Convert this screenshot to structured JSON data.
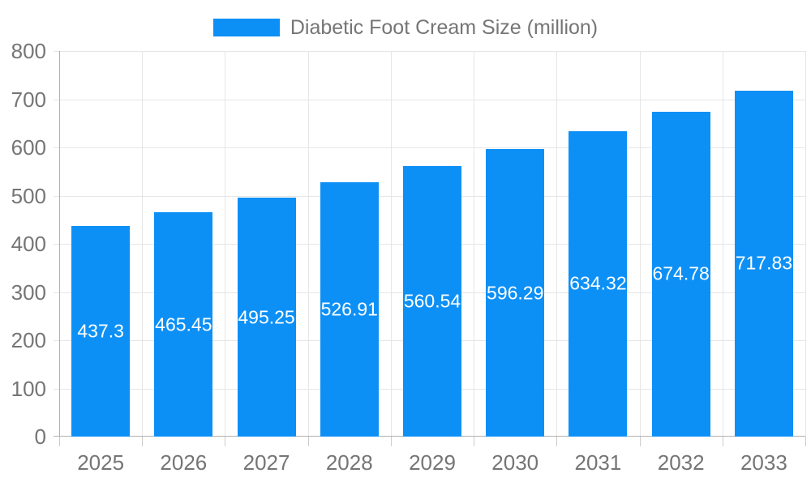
{
  "legend": {
    "label": "Diabetic Foot Cream Size (million)"
  },
  "chart_data": {
    "type": "bar",
    "title": "Diabetic Foot Cream Size (million)",
    "categories": [
      "2025",
      "2026",
      "2027",
      "2028",
      "2029",
      "2030",
      "2031",
      "2032",
      "2033"
    ],
    "values": [
      437.3,
      465.45,
      495.25,
      526.91,
      560.54,
      596.29,
      634.32,
      674.78,
      717.83
    ],
    "value_labels": [
      "437.3",
      "465.45",
      "495.25",
      "526.91",
      "560.54",
      "596.29",
      "634.32",
      "674.78",
      "717.83"
    ],
    "xlabel": "",
    "ylabel": "",
    "ylim": [
      0,
      800
    ],
    "ytick_interval": 100,
    "ytick_labels": [
      "0",
      "100",
      "200",
      "300",
      "400",
      "500",
      "600",
      "700",
      "800"
    ],
    "grid": true,
    "legend_position": "top",
    "colors": {
      "bar": "#0d90f6",
      "bar_value_label": "#ffffff",
      "tick_label": "#757575",
      "gridline": "#e6e6e6",
      "axis_line": "#b0b0b0",
      "tick_mark": "#cccccc",
      "background": "#ffffff"
    }
  }
}
